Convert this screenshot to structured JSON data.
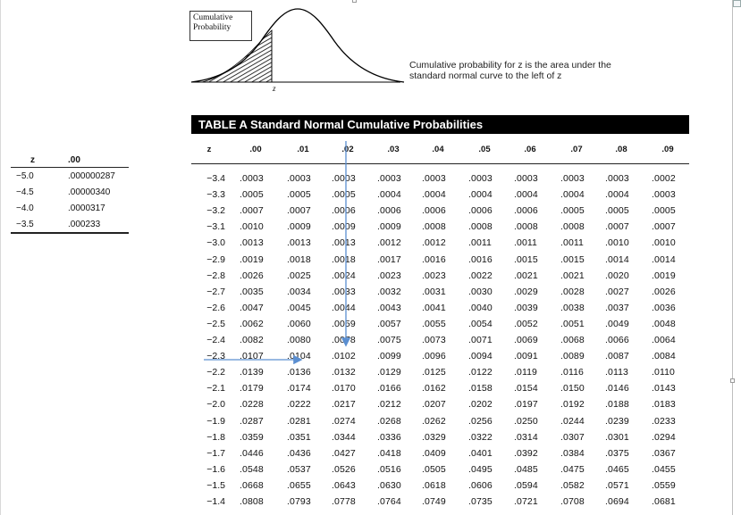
{
  "figure": {
    "box_label_line1": "Cumulative",
    "box_label_line2": "Probability",
    "axis_label": "z",
    "caption_line1": "Cumulative probability for z is the area under the",
    "caption_line2": "standard normal curve to the left of z"
  },
  "small_table": {
    "headers": [
      "z",
      ".00"
    ],
    "rows": [
      {
        "z": "−5.0",
        "p": ".000000287"
      },
      {
        "z": "−4.5",
        "p": ".00000340"
      },
      {
        "z": "−4.0",
        "p": ".0000317"
      },
      {
        "z": "−3.5",
        "p": ".000233"
      }
    ]
  },
  "main_table": {
    "title": "TABLE A  Standard Normal Cumulative Probabilities",
    "headers": [
      "z",
      ".00",
      ".01",
      ".02",
      ".03",
      ".04",
      ".05",
      ".06",
      ".07",
      ".08",
      ".09"
    ],
    "rows": [
      {
        "z": "−3.4",
        "v": [
          ".0003",
          ".0003",
          ".0003",
          ".0003",
          ".0003",
          ".0003",
          ".0003",
          ".0003",
          ".0003",
          ".0002"
        ]
      },
      {
        "z": "−3.3",
        "v": [
          ".0005",
          ".0005",
          ".0005",
          ".0004",
          ".0004",
          ".0004",
          ".0004",
          ".0004",
          ".0004",
          ".0003"
        ]
      },
      {
        "z": "−3.2",
        "v": [
          ".0007",
          ".0007",
          ".0006",
          ".0006",
          ".0006",
          ".0006",
          ".0006",
          ".0005",
          ".0005",
          ".0005"
        ]
      },
      {
        "z": "−3.1",
        "v": [
          ".0010",
          ".0009",
          ".0009",
          ".0009",
          ".0008",
          ".0008",
          ".0008",
          ".0008",
          ".0007",
          ".0007"
        ]
      },
      {
        "z": "−3.0",
        "v": [
          ".0013",
          ".0013",
          ".0013",
          ".0012",
          ".0012",
          ".0011",
          ".0011",
          ".0011",
          ".0010",
          ".0010"
        ]
      },
      {
        "z": "−2.9",
        "v": [
          ".0019",
          ".0018",
          ".0018",
          ".0017",
          ".0016",
          ".0016",
          ".0015",
          ".0015",
          ".0014",
          ".0014"
        ]
      },
      {
        "z": "−2.8",
        "v": [
          ".0026",
          ".0025",
          ".0024",
          ".0023",
          ".0023",
          ".0022",
          ".0021",
          ".0021",
          ".0020",
          ".0019"
        ]
      },
      {
        "z": "−2.7",
        "v": [
          ".0035",
          ".0034",
          ".0033",
          ".0032",
          ".0031",
          ".0030",
          ".0029",
          ".0028",
          ".0027",
          ".0026"
        ]
      },
      {
        "z": "−2.6",
        "v": [
          ".0047",
          ".0045",
          ".0044",
          ".0043",
          ".0041",
          ".0040",
          ".0039",
          ".0038",
          ".0037",
          ".0036"
        ]
      },
      {
        "z": "−2.5",
        "v": [
          ".0062",
          ".0060",
          ".0059",
          ".0057",
          ".0055",
          ".0054",
          ".0052",
          ".0051",
          ".0049",
          ".0048"
        ]
      },
      {
        "z": "−2.4",
        "v": [
          ".0082",
          ".0080",
          ".0078",
          ".0075",
          ".0073",
          ".0071",
          ".0069",
          ".0068",
          ".0066",
          ".0064"
        ]
      },
      {
        "z": "−2.3",
        "v": [
          ".0107",
          ".0104",
          ".0102",
          ".0099",
          ".0096",
          ".0094",
          ".0091",
          ".0089",
          ".0087",
          ".0084"
        ]
      },
      {
        "z": "−2.2",
        "v": [
          ".0139",
          ".0136",
          ".0132",
          ".0129",
          ".0125",
          ".0122",
          ".0119",
          ".0116",
          ".0113",
          ".0110"
        ]
      },
      {
        "z": "−2.1",
        "v": [
          ".0179",
          ".0174",
          ".0170",
          ".0166",
          ".0162",
          ".0158",
          ".0154",
          ".0150",
          ".0146",
          ".0143"
        ]
      },
      {
        "z": "−2.0",
        "v": [
          ".0228",
          ".0222",
          ".0217",
          ".0212",
          ".0207",
          ".0202",
          ".0197",
          ".0192",
          ".0188",
          ".0183"
        ]
      },
      {
        "z": "−1.9",
        "v": [
          ".0287",
          ".0281",
          ".0274",
          ".0268",
          ".0262",
          ".0256",
          ".0250",
          ".0244",
          ".0239",
          ".0233"
        ]
      },
      {
        "z": "−1.8",
        "v": [
          ".0359",
          ".0351",
          ".0344",
          ".0336",
          ".0329",
          ".0322",
          ".0314",
          ".0307",
          ".0301",
          ".0294"
        ]
      },
      {
        "z": "−1.7",
        "v": [
          ".0446",
          ".0436",
          ".0427",
          ".0418",
          ".0409",
          ".0401",
          ".0392",
          ".0384",
          ".0375",
          ".0367"
        ]
      },
      {
        "z": "−1.6",
        "v": [
          ".0548",
          ".0537",
          ".0526",
          ".0516",
          ".0505",
          ".0495",
          ".0485",
          ".0475",
          ".0465",
          ".0455"
        ]
      },
      {
        "z": "−1.5",
        "v": [
          ".0668",
          ".0655",
          ".0643",
          ".0630",
          ".0618",
          ".0606",
          ".0594",
          ".0582",
          ".0571",
          ".0559"
        ]
      },
      {
        "z": "−1.4",
        "v": [
          ".0808",
          ".0793",
          ".0778",
          ".0764",
          ".0749",
          ".0735",
          ".0721",
          ".0708",
          ".0694",
          ".0681"
        ]
      }
    ]
  },
  "annotation": {
    "arrow_color": "#5b8fd1",
    "highlight_row_z": "−2.3",
    "highlight_col": ".02",
    "highlight_value": ".0102"
  }
}
